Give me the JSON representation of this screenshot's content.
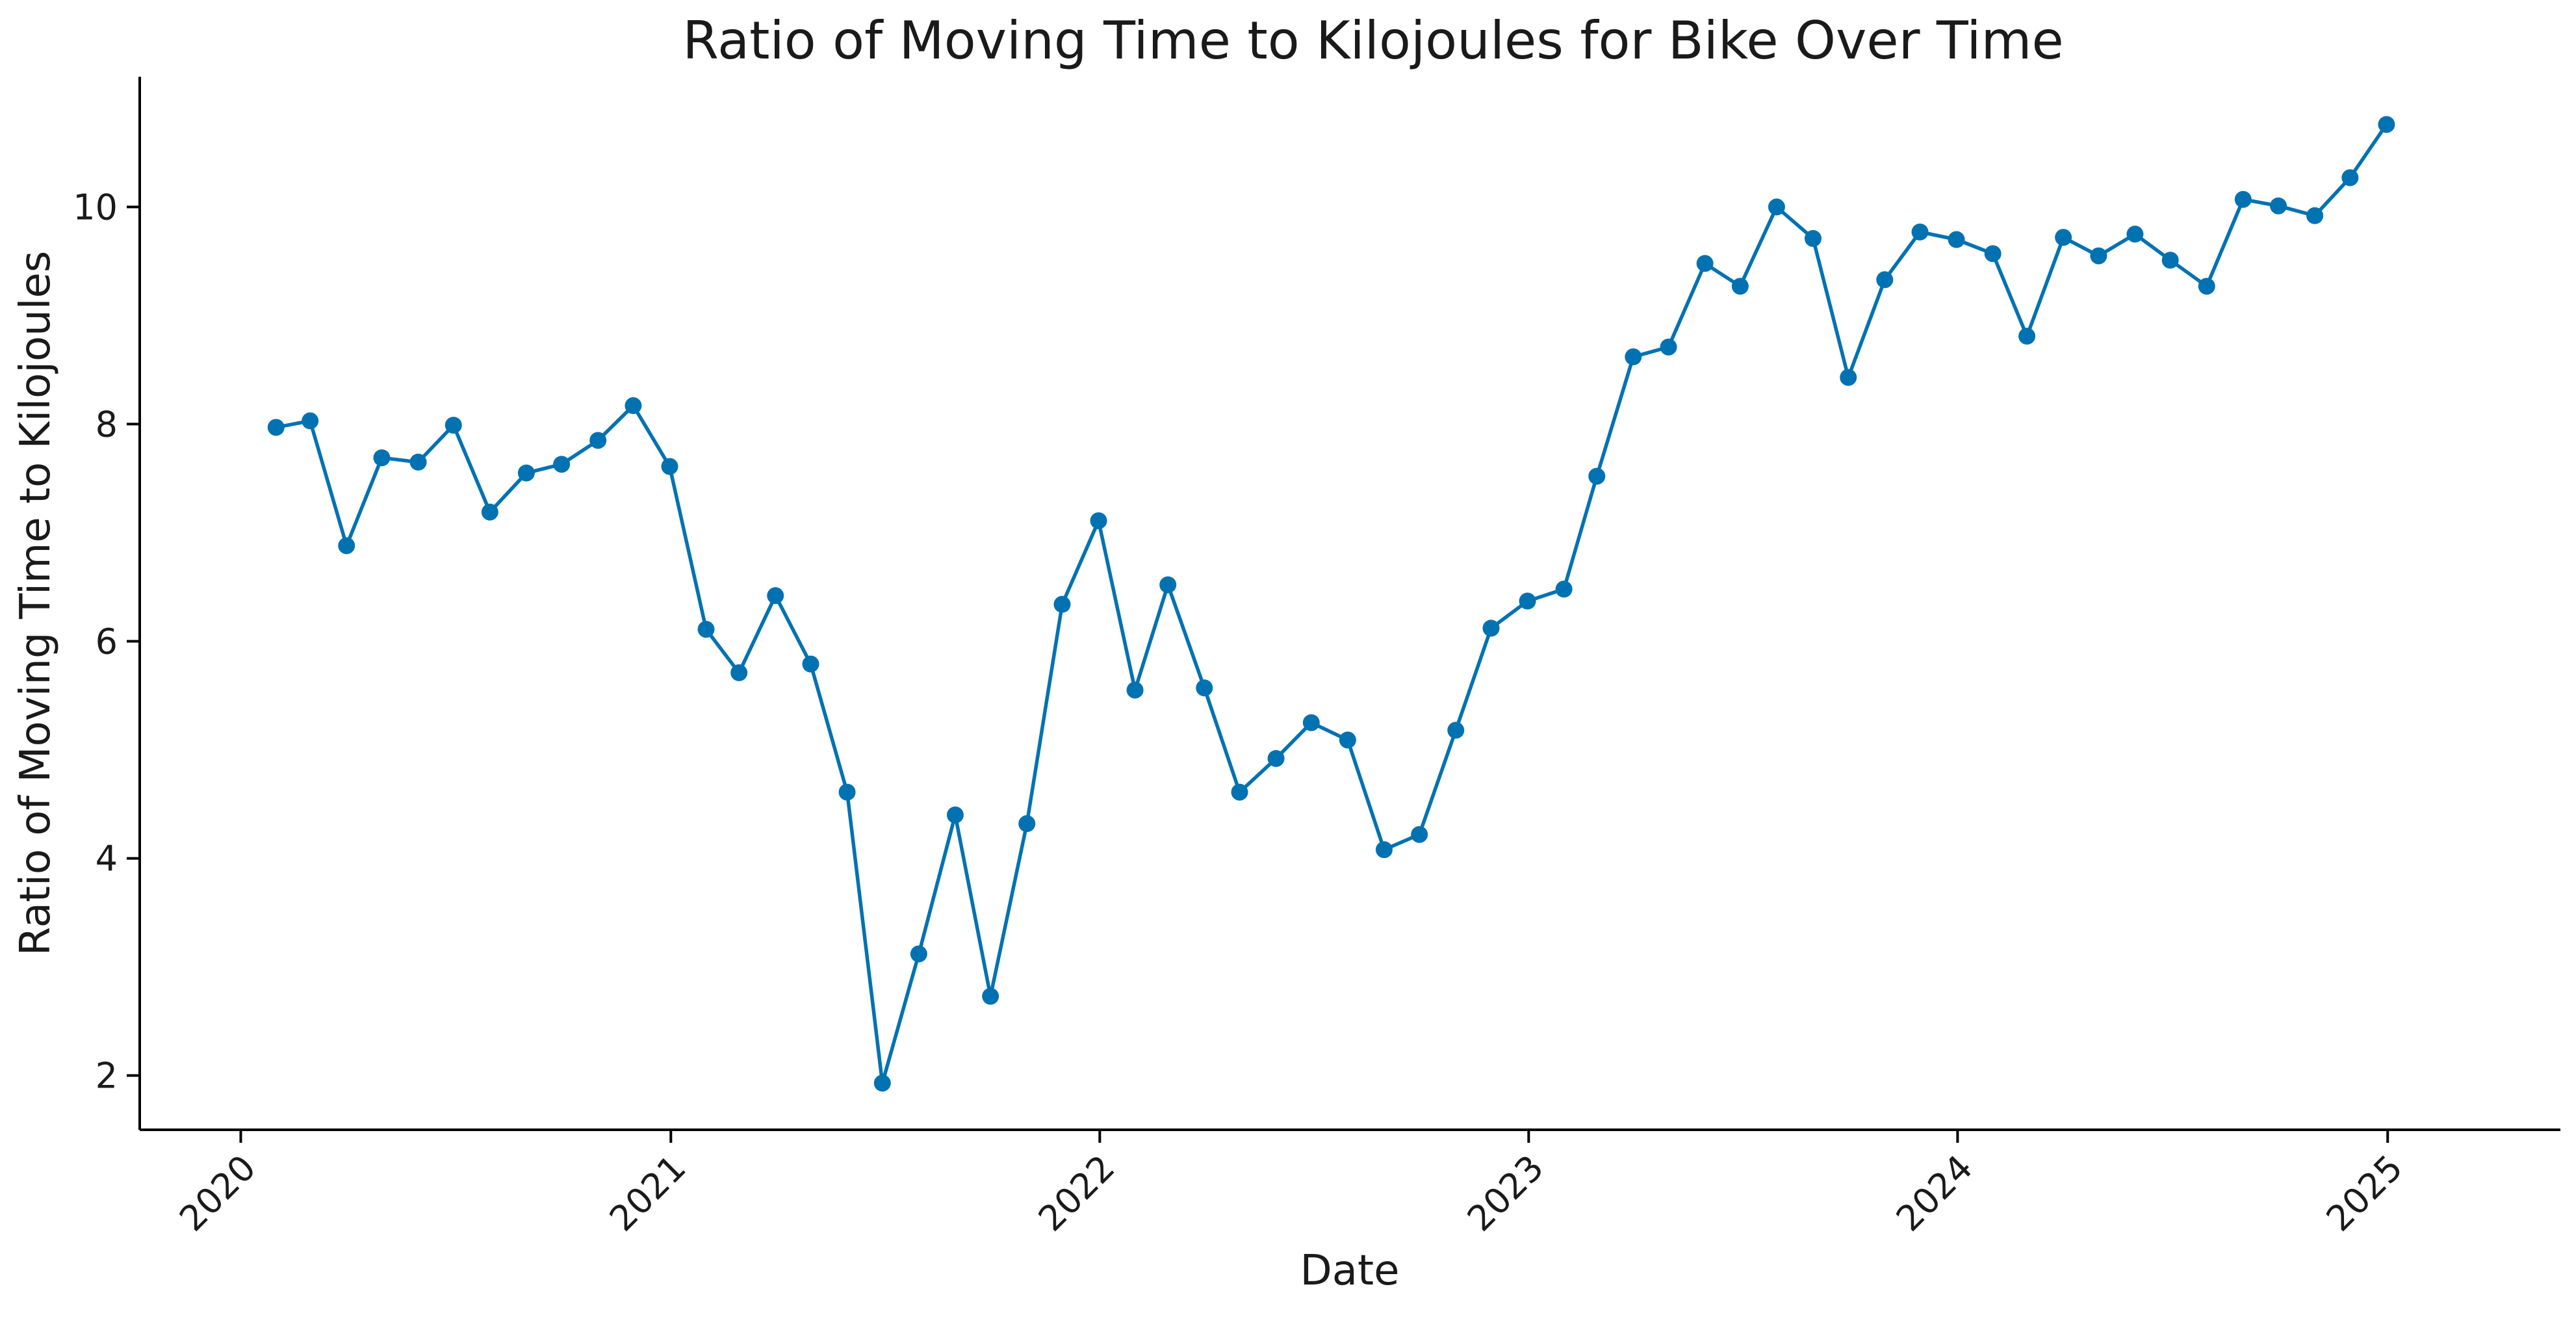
{
  "chart_data": {
    "type": "line",
    "title": "Ratio of Moving Time to Kilojoules for Bike Over Time",
    "xlabel": "Date",
    "ylabel": "Ratio of Moving Time to Kilojoules",
    "x_axis_type": "date",
    "xlim": [
      "2019-10-07",
      "2025-05-28"
    ],
    "ylim": [
      1.5,
      11.2
    ],
    "x_ticks": [
      {
        "date": "2020-01-01",
        "label": "2020"
      },
      {
        "date": "2021-01-01",
        "label": "2021"
      },
      {
        "date": "2022-01-01",
        "label": "2022"
      },
      {
        "date": "2023-01-01",
        "label": "2023"
      },
      {
        "date": "2024-01-01",
        "label": "2024"
      },
      {
        "date": "2025-01-01",
        "label": "2025"
      }
    ],
    "y_ticks": [
      2,
      4,
      6,
      8,
      10
    ],
    "grid": false,
    "legend": "none",
    "series_color": "#0072b2",
    "marker": "circle",
    "series": [
      {
        "x": [
          "2020-01-31",
          "2020-02-29",
          "2020-03-31",
          "2020-04-30",
          "2020-05-31",
          "2020-06-30",
          "2020-07-31",
          "2020-08-31",
          "2020-09-30",
          "2020-10-31",
          "2020-11-30",
          "2020-12-31",
          "2021-01-31",
          "2021-02-28",
          "2021-03-31",
          "2021-04-30",
          "2021-05-31",
          "2021-06-30",
          "2021-07-31",
          "2021-08-31",
          "2021-09-30",
          "2021-10-31",
          "2021-11-30",
          "2021-12-31",
          "2022-01-31",
          "2022-02-28",
          "2022-03-31",
          "2022-04-30",
          "2022-05-31",
          "2022-06-30",
          "2022-07-31",
          "2022-08-31",
          "2022-09-30",
          "2022-10-31",
          "2022-11-30",
          "2022-12-31",
          "2023-01-31",
          "2023-02-28",
          "2023-03-31",
          "2023-04-30",
          "2023-05-31",
          "2023-06-30",
          "2023-07-31",
          "2023-08-31",
          "2023-09-30",
          "2023-10-31",
          "2023-11-30",
          "2023-12-31",
          "2024-01-31",
          "2024-02-29",
          "2024-03-31",
          "2024-04-30",
          "2024-05-31",
          "2024-06-30",
          "2024-07-31",
          "2024-08-31",
          "2024-09-30",
          "2024-10-31",
          "2024-11-30",
          "2024-12-31"
        ],
        "y": [
          7.97,
          8.03,
          6.88,
          7.69,
          7.65,
          7.99,
          7.19,
          7.55,
          7.63,
          7.85,
          8.17,
          7.61,
          6.11,
          5.71,
          6.42,
          5.79,
          4.61,
          1.93,
          3.12,
          4.4,
          2.73,
          4.32,
          6.34,
          7.11,
          5.55,
          6.52,
          5.57,
          4.61,
          4.92,
          5.25,
          5.09,
          4.08,
          4.22,
          5.18,
          6.12,
          6.37,
          6.48,
          7.52,
          8.62,
          8.71,
          9.48,
          9.27,
          10.0,
          9.71,
          8.43,
          9.33,
          9.77,
          9.7,
          9.57,
          8.81,
          9.72,
          9.55,
          9.75,
          9.51,
          9.27,
          10.07,
          10.01,
          9.92,
          10.27,
          10.76
        ]
      }
    ]
  }
}
